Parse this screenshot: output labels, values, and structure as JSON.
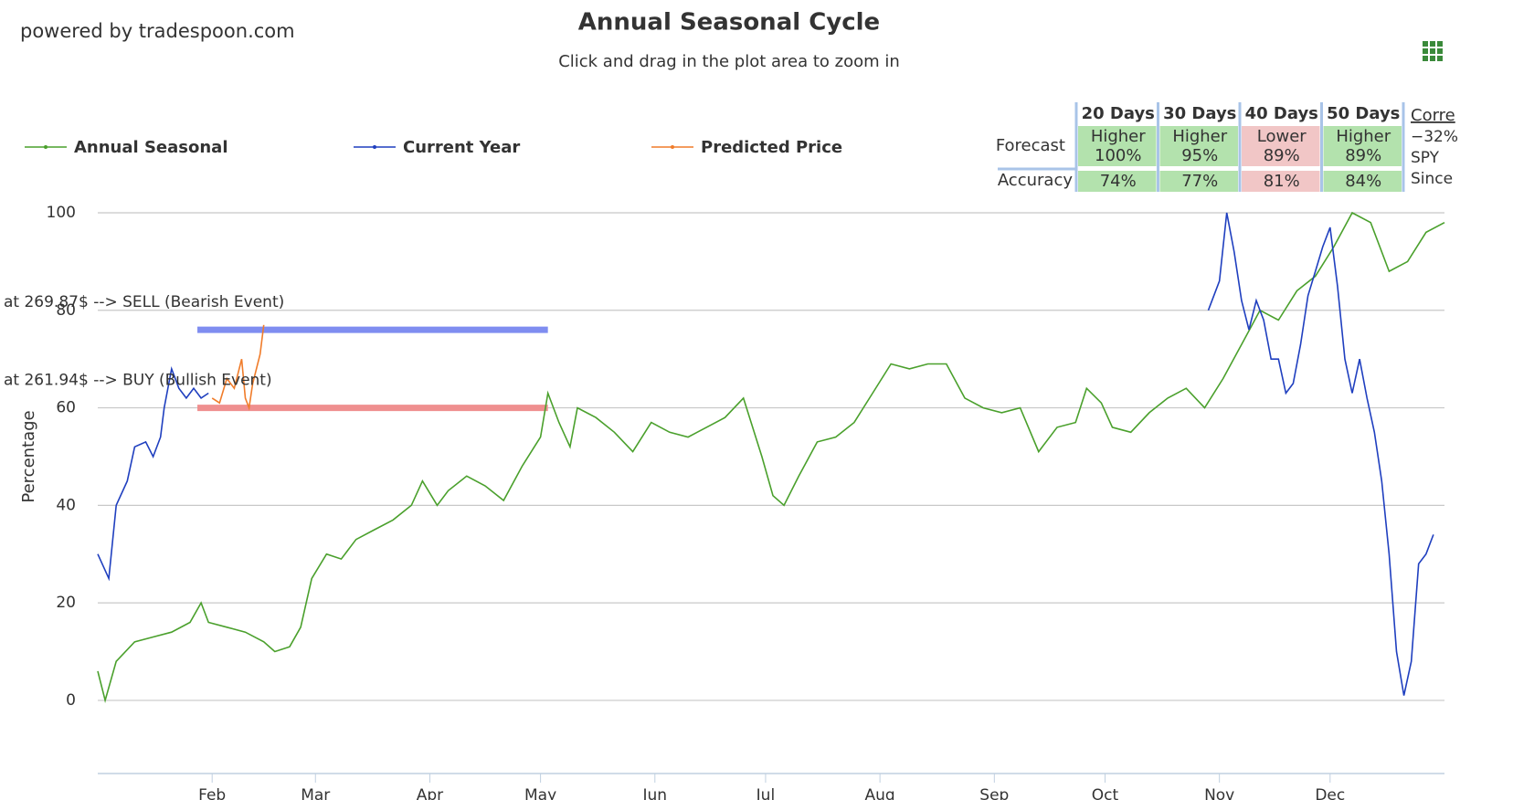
{
  "header": {
    "brand": "powered by tradespoon.com"
  },
  "chart_data": {
    "type": "line",
    "title": "Annual Seasonal Cycle",
    "subtitle": "Click and drag in the plot area to zoom in",
    "ylabel": "Percentage",
    "xlim": [
      0,
      365
    ],
    "xticks": [
      {
        "value": 31,
        "label": "Feb"
      },
      {
        "value": 59,
        "label": "Mar"
      },
      {
        "value": 90,
        "label": "Apr"
      },
      {
        "value": 120,
        "label": "May"
      },
      {
        "value": 151,
        "label": "Jun"
      },
      {
        "value": 181,
        "label": "Jul"
      },
      {
        "value": 212,
        "label": "Aug"
      },
      {
        "value": 243,
        "label": "Sep"
      },
      {
        "value": 273,
        "label": "Oct"
      },
      {
        "value": 304,
        "label": "Nov"
      },
      {
        "value": 334,
        "label": "Dec"
      }
    ],
    "ylim": [
      -15,
      100
    ],
    "yticks": [
      0,
      20,
      40,
      60,
      80,
      100
    ],
    "grid": true,
    "series": [
      {
        "name": "Annual Seasonal",
        "color": "#4aa02c",
        "x": [
          0,
          2,
          5,
          10,
          15,
          20,
          25,
          28,
          30,
          35,
          40,
          45,
          48,
          52,
          55,
          58,
          62,
          66,
          70,
          75,
          80,
          85,
          88,
          92,
          95,
          100,
          105,
          110,
          115,
          120,
          122,
          125,
          128,
          130,
          135,
          140,
          145,
          150,
          155,
          160,
          165,
          170,
          175,
          180,
          183,
          186,
          190,
          195,
          200,
          205,
          210,
          215,
          220,
          225,
          230,
          235,
          240,
          245,
          250,
          255,
          260,
          265,
          268,
          272,
          275,
          280,
          285,
          290,
          295,
          300,
          305,
          310,
          315,
          320,
          325,
          330,
          335,
          340,
          345,
          350,
          355,
          360,
          365
        ],
        "values": [
          6,
          0,
          8,
          12,
          13,
          14,
          16,
          20,
          16,
          15,
          14,
          12,
          10,
          11,
          15,
          25,
          30,
          29,
          33,
          35,
          37,
          40,
          45,
          40,
          43,
          46,
          44,
          41,
          48,
          54,
          63,
          57,
          52,
          60,
          58,
          55,
          51,
          57,
          55,
          54,
          56,
          58,
          62,
          50,
          42,
          40,
          46,
          53,
          54,
          57,
          63,
          69,
          68,
          69,
          69,
          62,
          60,
          59,
          60,
          51,
          56,
          57,
          64,
          61,
          56,
          55,
          59,
          62,
          64,
          60,
          66,
          73,
          80,
          78,
          84,
          87,
          93,
          100,
          98,
          88,
          90,
          96,
          98
        ]
      },
      {
        "name": "Current Year",
        "color": "#1f3fbf",
        "x": [
          0,
          3,
          5,
          8,
          10,
          13,
          15,
          17,
          18,
          20,
          22,
          24,
          26,
          28,
          30,
          150,
          301,
          304,
          306,
          308,
          310,
          312,
          314,
          316,
          318,
          320,
          322,
          324,
          326,
          328,
          330,
          332,
          334,
          336,
          338,
          340,
          342,
          344,
          346,
          348,
          350,
          352,
          354,
          356,
          358,
          360,
          362
        ],
        "values": [
          30,
          25,
          40,
          45,
          52,
          53,
          50,
          54,
          60,
          68,
          64,
          62,
          64,
          62,
          63,
          null,
          80,
          86,
          100,
          92,
          82,
          76,
          82,
          78,
          70,
          70,
          63,
          65,
          73,
          83,
          88,
          93,
          97,
          85,
          70,
          63,
          70,
          62,
          55,
          45,
          30,
          10,
          1,
          8,
          28,
          30,
          34
        ]
      },
      {
        "name": "Predicted Price",
        "color": "#f07c2a",
        "x": [
          31,
          33,
          35,
          37,
          39,
          40,
          41,
          42,
          44,
          45
        ],
        "values": [
          62,
          61,
          66,
          64,
          70,
          62,
          60,
          65,
          71,
          77
        ]
      }
    ],
    "annotations": [
      {
        "text": "at 269.87$ --> SELL (Bearish Event)",
        "color": "#1a1acc",
        "band_color": "#7f8df0",
        "y": 76,
        "x": [
          27,
          122
        ]
      },
      {
        "text": "at 261.94$ --> BUY (Bullish Event)",
        "color": "#dd1111",
        "band_color": "#ef8f8f",
        "y": 60,
        "x": [
          27,
          122
        ]
      }
    ]
  },
  "forecast_table": {
    "columns": [
      "20 Days",
      "30 Days",
      "40 Days",
      "50 Days"
    ],
    "forecast_label": "Forecast",
    "forecast": [
      [
        "Higher",
        "100%"
      ],
      [
        "Higher",
        "95%"
      ],
      [
        "Lower",
        "89%"
      ],
      [
        "Higher",
        "89%"
      ]
    ],
    "accuracy_label": "Accuracy",
    "accuracy": [
      "74%",
      "77%",
      "81%",
      "84%"
    ],
    "cell_colors": [
      "#b3e2ad",
      "#b3e2ad",
      "#f1c6c6",
      "#b3e2ad"
    ],
    "side": {
      "header": "Corre",
      "lines": [
        "−32%",
        "SPY",
        "Since"
      ]
    }
  }
}
